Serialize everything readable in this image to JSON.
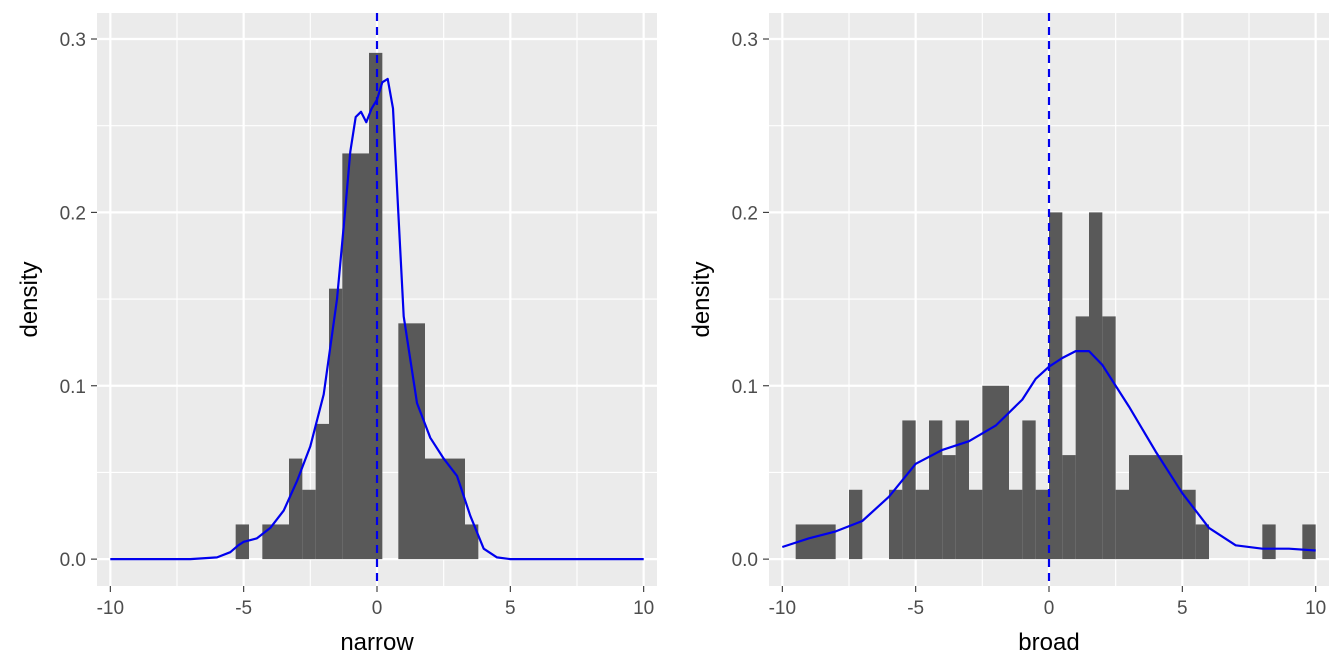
{
  "chart_data": [
    {
      "type": "histogram",
      "xlabel": "narrow",
      "ylabel": "density",
      "xlim": [
        -10.5,
        10.5
      ],
      "ylim": [
        -0.0155,
        0.315
      ],
      "x_ticks": [
        -10,
        -5,
        0,
        5,
        10
      ],
      "x_tick_labels": [
        "-10",
        "-5",
        "0",
        "5",
        "10"
      ],
      "y_ticks": [
        0.0,
        0.1,
        0.2,
        0.3
      ],
      "y_tick_labels": [
        "0.0",
        "0.1",
        "0.2",
        "0.3"
      ],
      "bar_color": "#595959",
      "line_color": "#0000ee",
      "bins": [
        {
          "x0": -5.3,
          "x1": -4.8,
          "y": 0.02
        },
        {
          "x0": -4.3,
          "x1": -3.3,
          "y": 0.02
        },
        {
          "x0": -3.3,
          "x1": -2.8,
          "y": 0.058
        },
        {
          "x0": -2.8,
          "x1": -2.3,
          "y": 0.04
        },
        {
          "x0": -2.3,
          "x1": -1.8,
          "y": 0.078
        },
        {
          "x0": -1.8,
          "x1": -1.3,
          "y": 0.156
        },
        {
          "x0": -1.3,
          "x1": -0.3,
          "y": 0.234
        },
        {
          "x0": -0.3,
          "x1": 0.2,
          "y": 0.292
        },
        {
          "x0": 0.8,
          "x1": 1.8,
          "y": 0.136
        },
        {
          "x0": 1.8,
          "x1": 3.3,
          "y": 0.058
        },
        {
          "x0": 3.3,
          "x1": 3.8,
          "y": 0.02
        }
      ],
      "density": {
        "x": [
          -10,
          -7,
          -6,
          -5.5,
          -5.2,
          -5,
          -4.5,
          -4,
          -3.5,
          -3,
          -2.5,
          -2,
          -1.5,
          -1.2,
          -1,
          -0.8,
          -0.6,
          -0.4,
          -0.2,
          0,
          0.2,
          0.4,
          0.6,
          0.8,
          1,
          1.5,
          2,
          2.5,
          3,
          3.5,
          4,
          4.5,
          5,
          10
        ],
        "y": [
          0.0,
          0.0,
          0.001,
          0.004,
          0.008,
          0.01,
          0.012,
          0.018,
          0.028,
          0.045,
          0.065,
          0.095,
          0.15,
          0.2,
          0.235,
          0.255,
          0.258,
          0.252,
          0.26,
          0.265,
          0.275,
          0.277,
          0.26,
          0.2,
          0.14,
          0.09,
          0.07,
          0.058,
          0.048,
          0.025,
          0.006,
          0.001,
          0.0,
          0.0
        ]
      },
      "vline_x": 0
    },
    {
      "type": "histogram",
      "xlabel": "broad",
      "ylabel": "density",
      "xlim": [
        -10.5,
        10.5
      ],
      "ylim": [
        -0.0155,
        0.315
      ],
      "x_ticks": [
        -10,
        -5,
        0,
        5,
        10
      ],
      "x_tick_labels": [
        "-10",
        "-5",
        "0",
        "5",
        "10"
      ],
      "y_ticks": [
        0.0,
        0.1,
        0.2,
        0.3
      ],
      "y_tick_labels": [
        "0.0",
        "0.1",
        "0.2",
        "0.3"
      ],
      "bar_color": "#595959",
      "line_color": "#0000ee",
      "bins": [
        {
          "x0": -9.5,
          "x1": -8.0,
          "y": 0.02
        },
        {
          "x0": -7.5,
          "x1": -7.0,
          "y": 0.04
        },
        {
          "x0": -6.0,
          "x1": -5.5,
          "y": 0.04
        },
        {
          "x0": -5.5,
          "x1": -5.0,
          "y": 0.08
        },
        {
          "x0": -5.0,
          "x1": -4.5,
          "y": 0.04
        },
        {
          "x0": -4.5,
          "x1": -4.0,
          "y": 0.08
        },
        {
          "x0": -4.0,
          "x1": -3.5,
          "y": 0.06
        },
        {
          "x0": -3.5,
          "x1": -3.0,
          "y": 0.08
        },
        {
          "x0": -3.0,
          "x1": -2.5,
          "y": 0.04
        },
        {
          "x0": -2.5,
          "x1": -1.5,
          "y": 0.1
        },
        {
          "x0": -1.5,
          "x1": -1.0,
          "y": 0.04
        },
        {
          "x0": -1.0,
          "x1": -0.5,
          "y": 0.08
        },
        {
          "x0": -0.5,
          "x1": 0.0,
          "y": 0.04
        },
        {
          "x0": 0.0,
          "x1": 0.5,
          "y": 0.2
        },
        {
          "x0": 0.5,
          "x1": 1.0,
          "y": 0.06
        },
        {
          "x0": 1.0,
          "x1": 1.5,
          "y": 0.14
        },
        {
          "x0": 1.5,
          "x1": 2.0,
          "y": 0.2
        },
        {
          "x0": 2.0,
          "x1": 2.5,
          "y": 0.14
        },
        {
          "x0": 2.5,
          "x1": 3.0,
          "y": 0.04
        },
        {
          "x0": 3.0,
          "x1": 5.0,
          "y": 0.06
        },
        {
          "x0": 5.0,
          "x1": 5.5,
          "y": 0.04
        },
        {
          "x0": 5.5,
          "x1": 6.0,
          "y": 0.02
        },
        {
          "x0": 8.0,
          "x1": 8.5,
          "y": 0.02
        },
        {
          "x0": 9.5,
          "x1": 10.0,
          "y": 0.02
        }
      ],
      "density": {
        "x": [
          -10,
          -9,
          -8,
          -7,
          -6,
          -5,
          -4,
          -3,
          -2,
          -1,
          -0.5,
          0,
          0.5,
          1,
          1.5,
          2,
          3,
          4,
          5,
          6,
          7,
          8,
          9,
          10
        ],
        "y": [
          0.007,
          0.012,
          0.016,
          0.022,
          0.036,
          0.055,
          0.063,
          0.068,
          0.077,
          0.092,
          0.104,
          0.111,
          0.116,
          0.12,
          0.12,
          0.112,
          0.088,
          0.062,
          0.038,
          0.018,
          0.008,
          0.006,
          0.006,
          0.005
        ]
      },
      "vline_x": 0
    }
  ]
}
